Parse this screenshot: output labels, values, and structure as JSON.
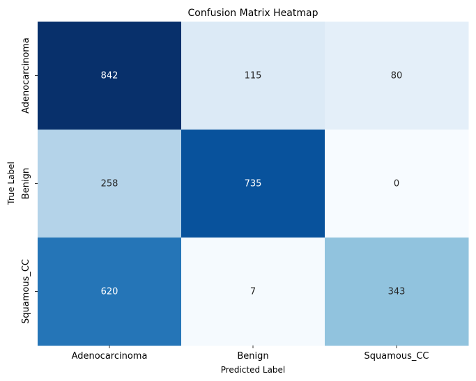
{
  "chart_data": {
    "type": "heatmap",
    "title": "Confusion Matrix Heatmap",
    "xlabel": "Predicted Label",
    "ylabel": "True Label",
    "x_categories": [
      "Adenocarcinoma",
      "Benign",
      "Squamous_CC"
    ],
    "y_categories": [
      "Adenocarcinoma",
      "Benign",
      "Squamous_CC"
    ],
    "values": [
      [
        842,
        115,
        80
      ],
      [
        258,
        735,
        0
      ],
      [
        620,
        7,
        343
      ]
    ],
    "colormap": "Blues",
    "color_range": [
      0,
      842
    ],
    "colorbar": false,
    "annotations": true,
    "colors": {
      "low": "#f7fbff",
      "high": "#08306b",
      "text_dark": "#262626",
      "text_light": "#ffffff"
    }
  }
}
